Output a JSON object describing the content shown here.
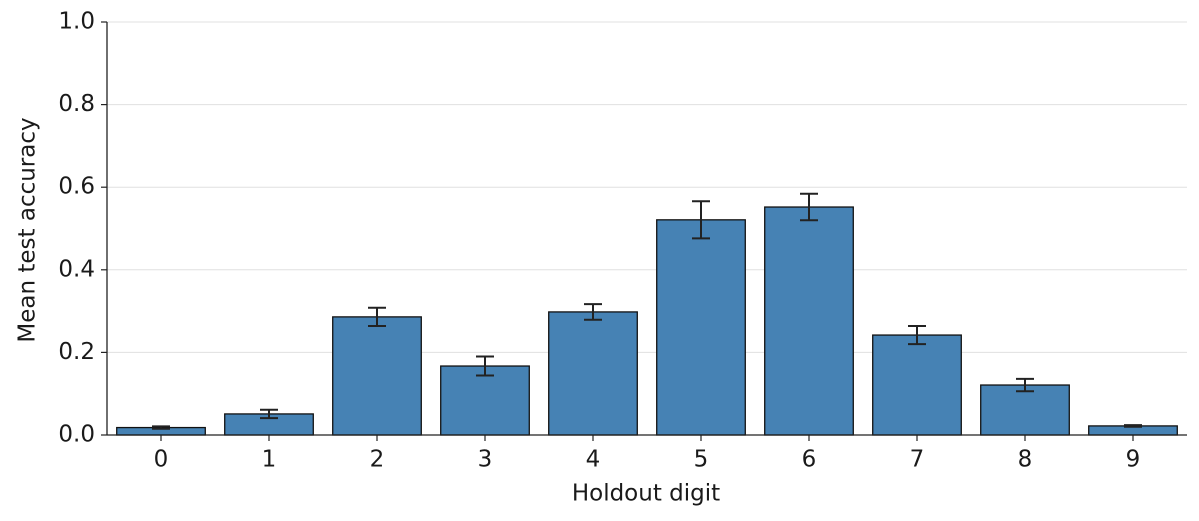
{
  "chart_data": {
    "type": "bar",
    "xlabel": "Holdout digit",
    "ylabel": "Mean test accuracy",
    "categories": [
      "0",
      "1",
      "2",
      "3",
      "4",
      "5",
      "6",
      "7",
      "8",
      "9"
    ],
    "values": [
      0.018,
      0.051,
      0.286,
      0.167,
      0.298,
      0.521,
      0.552,
      0.242,
      0.121,
      0.022
    ],
    "errors": [
      0.003,
      0.01,
      0.022,
      0.023,
      0.019,
      0.045,
      0.032,
      0.022,
      0.015,
      0.002
    ],
    "color": "#4682b4",
    "ylim": [
      0,
      1
    ],
    "yticks": [
      {
        "value": 0,
        "label": "0.0"
      },
      0.2,
      0.4,
      0.6,
      0.8,
      {
        "value": 1,
        "label": "1.0"
      }
    ],
    "grid": true
  }
}
